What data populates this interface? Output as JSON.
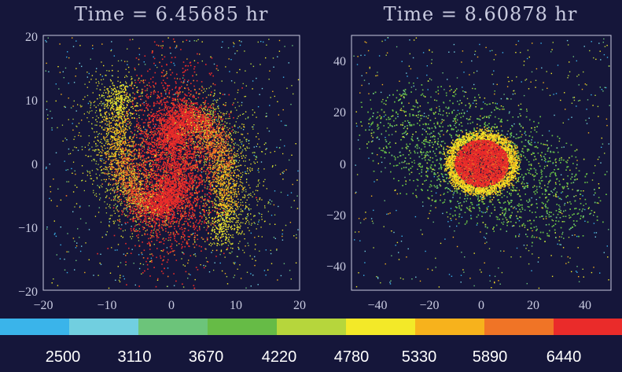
{
  "panels": [
    {
      "title": "Time = 6.45685 hr",
      "x_ticks": [
        "−20",
        "−10",
        "0",
        "10",
        "20"
      ],
      "y_ticks": [
        "20",
        "10",
        "0",
        "−10",
        "−20"
      ]
    },
    {
      "title": "Time = 8.60878 hr",
      "x_ticks": [
        "−40",
        "−20",
        "0",
        "20",
        "40"
      ],
      "y_ticks": [
        "40",
        "20",
        "0",
        "−20",
        "−40"
      ]
    }
  ],
  "colorbar": {
    "colors": [
      "#3ab4ea",
      "#71cfe0",
      "#6cc47a",
      "#66bb46",
      "#b6d63c",
      "#f3e928",
      "#f7b21c",
      "#f07426",
      "#ea2b2a"
    ],
    "labels": [
      "2500",
      "3110",
      "3670",
      "4220",
      "4780",
      "5330",
      "5890",
      "6440"
    ]
  },
  "background_color": "#15163a"
}
